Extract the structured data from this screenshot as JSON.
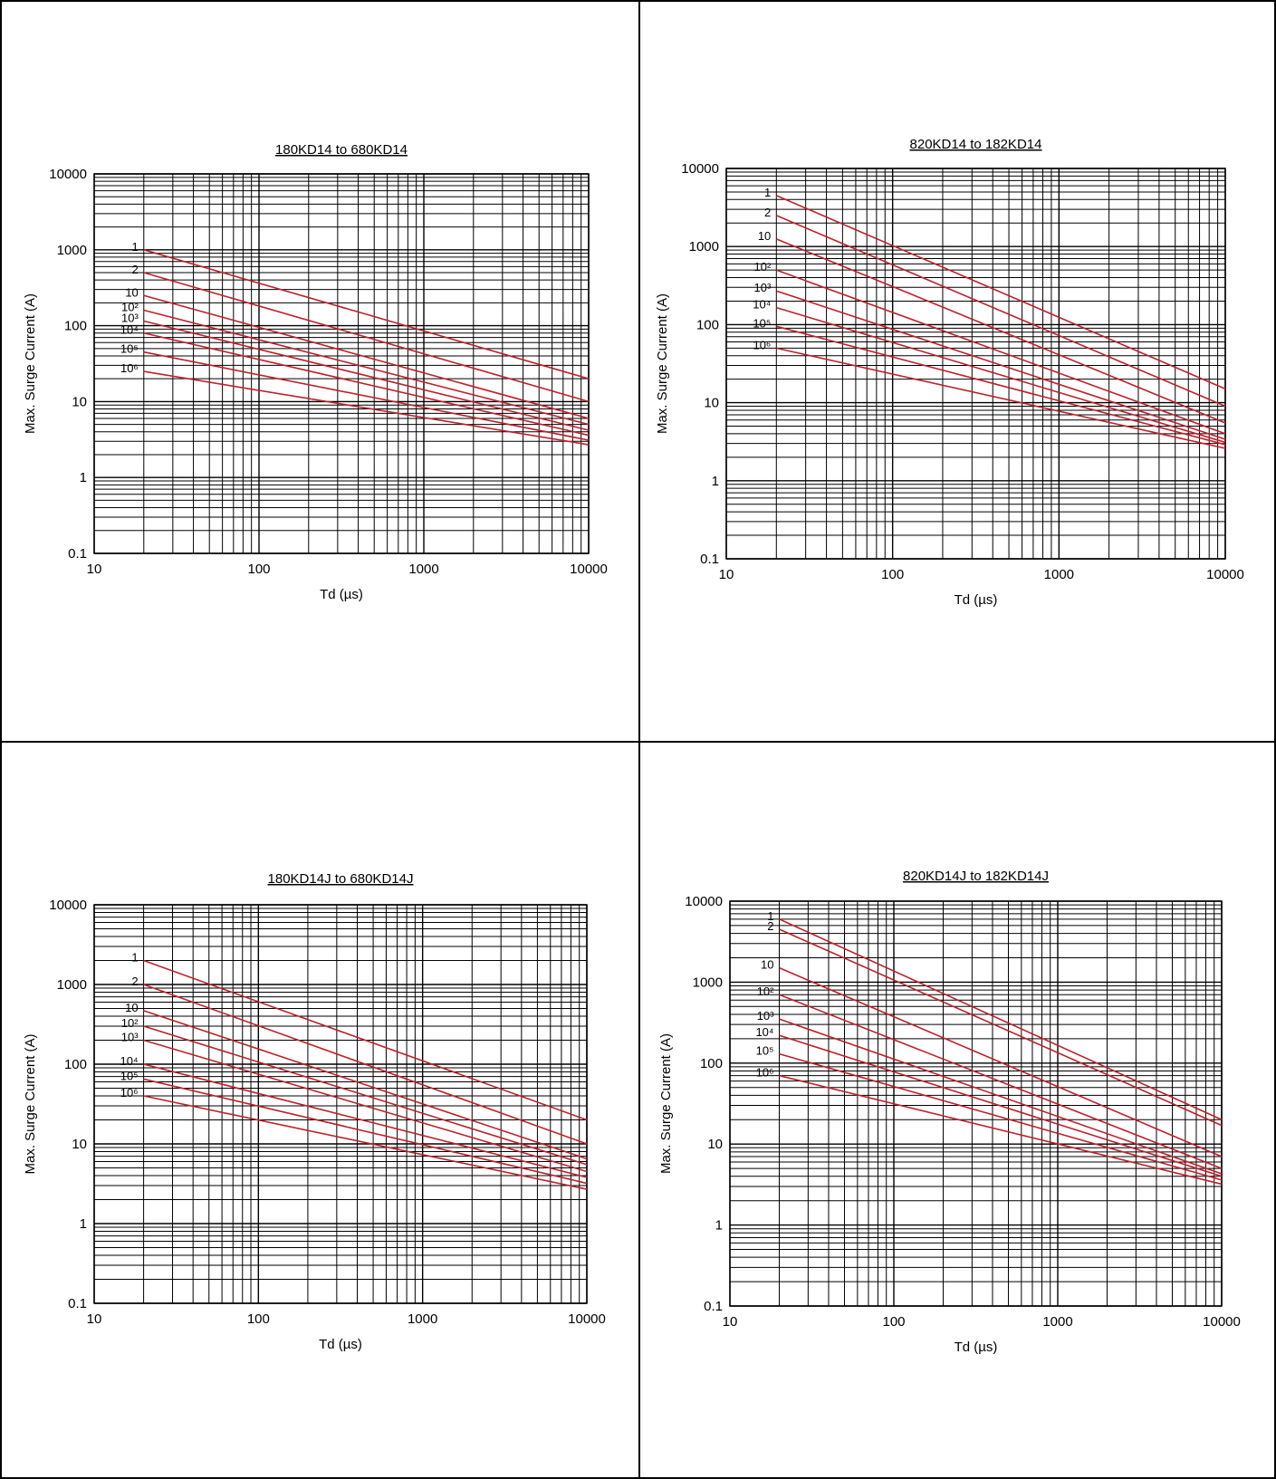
{
  "colors": {
    "curve": "#c0202a",
    "grid": "#000000",
    "border": "#000000",
    "text": "#000000"
  },
  "chart_data": [
    {
      "type": "line",
      "title": "180KD14 to 680KD14",
      "xlabel": "Td (µs)",
      "ylabel": "Max. Surge Current (A)",
      "xscale": "log",
      "yscale": "log",
      "xlim": [
        10,
        10000
      ],
      "ylim": [
        0.1,
        10000
      ],
      "x_ticks": [
        "10",
        "100",
        "1000",
        "10000"
      ],
      "y_ticks": [
        "0.1",
        "1",
        "10",
        "100",
        "1000",
        "10000"
      ],
      "grid": true,
      "series": [
        {
          "label": "1",
          "points": [
            [
              20,
              1000
            ],
            [
              10000,
              20
            ]
          ]
        },
        {
          "label": "2",
          "points": [
            [
              20,
              500
            ],
            [
              10000,
              10
            ]
          ]
        },
        {
          "label": "10",
          "points": [
            [
              20,
              250
            ],
            [
              10000,
              6
            ]
          ]
        },
        {
          "label": "10²",
          "points": [
            [
              20,
              160
            ],
            [
              10000,
              5
            ]
          ]
        },
        {
          "label": "10³",
          "points": [
            [
              20,
              115
            ],
            [
              10000,
              4.2
            ]
          ]
        },
        {
          "label": "10⁴",
          "points": [
            [
              20,
              80
            ],
            [
              10000,
              3.6
            ]
          ]
        },
        {
          "label": "10⁵",
          "points": [
            [
              20,
              45
            ],
            [
              10000,
              3.1
            ]
          ]
        },
        {
          "label": "10⁶",
          "points": [
            [
              20,
              25
            ],
            [
              10000,
              2.7
            ]
          ]
        }
      ]
    },
    {
      "type": "line",
      "title": "820KD14 to 182KD14",
      "xlabel": "Td (µs)",
      "ylabel": "Max. Surge Current (A)",
      "xscale": "log",
      "yscale": "log",
      "xlim": [
        10,
        10000
      ],
      "ylim": [
        0.1,
        10000
      ],
      "x_ticks": [
        "10",
        "100",
        "1000",
        "10000"
      ],
      "y_ticks": [
        "0.1",
        "1",
        "10",
        "100",
        "1000",
        "10000"
      ],
      "grid": true,
      "series": [
        {
          "label": "1",
          "points": [
            [
              20,
              4500
            ],
            [
              10000,
              15
            ]
          ]
        },
        {
          "label": "2",
          "points": [
            [
              20,
              2500
            ],
            [
              10000,
              9
            ]
          ]
        },
        {
          "label": "10",
          "points": [
            [
              20,
              1250
            ],
            [
              10000,
              5.5
            ]
          ]
        },
        {
          "label": "10²",
          "points": [
            [
              20,
              500
            ],
            [
              10000,
              4
            ]
          ]
        },
        {
          "label": "10³",
          "points": [
            [
              20,
              270
            ],
            [
              10000,
              3.4
            ]
          ]
        },
        {
          "label": "10⁴",
          "points": [
            [
              20,
              165
            ],
            [
              10000,
              3.1
            ]
          ]
        },
        {
          "label": "10⁵",
          "points": [
            [
              20,
              95
            ],
            [
              10000,
              2.9
            ]
          ]
        },
        {
          "label": "10⁶",
          "points": [
            [
              20,
              50
            ],
            [
              10000,
              2.6
            ]
          ]
        }
      ]
    },
    {
      "type": "line",
      "title": "180KD14J to 680KD14J",
      "xlabel": "Td (µs)",
      "ylabel": "Max. Surge Current (A)",
      "xscale": "log",
      "yscale": "log",
      "xlim": [
        10,
        10000
      ],
      "ylim": [
        0.1,
        10000
      ],
      "x_ticks": [
        "10",
        "100",
        "1000",
        "10000"
      ],
      "y_ticks": [
        "0.1",
        "1",
        "10",
        "100",
        "1000",
        "10000"
      ],
      "grid": true,
      "series": [
        {
          "label": "1",
          "points": [
            [
              20,
              2000
            ],
            [
              10000,
              20
            ]
          ]
        },
        {
          "label": "2",
          "points": [
            [
              20,
              1000
            ],
            [
              10000,
              10
            ]
          ]
        },
        {
          "label": "10",
          "points": [
            [
              20,
              470
            ],
            [
              10000,
              6.5
            ]
          ]
        },
        {
          "label": "10²",
          "points": [
            [
              20,
              300
            ],
            [
              10000,
              5.5
            ]
          ]
        },
        {
          "label": "10³",
          "points": [
            [
              20,
              200
            ],
            [
              10000,
              4.5
            ]
          ]
        },
        {
          "label": "10⁴",
          "points": [
            [
              20,
              100
            ],
            [
              10000,
              3.8
            ]
          ]
        },
        {
          "label": "10⁵",
          "points": [
            [
              20,
              65
            ],
            [
              10000,
              3.2
            ]
          ]
        },
        {
          "label": "10⁶",
          "points": [
            [
              20,
              40
            ],
            [
              10000,
              2.7
            ]
          ]
        }
      ]
    },
    {
      "type": "line",
      "title": "820KD14J to 182KD14J",
      "xlabel": "Td (µs)",
      "ylabel": "Max. Surge Current (A)",
      "xscale": "log",
      "yscale": "log",
      "xlim": [
        10,
        10000
      ],
      "ylim": [
        0.1,
        10000
      ],
      "x_ticks": [
        "10",
        "100",
        "1000",
        "10000"
      ],
      "y_ticks": [
        "0.1",
        "1",
        "10",
        "100",
        "1000",
        "10000"
      ],
      "grid": true,
      "series": [
        {
          "label": "1",
          "points": [
            [
              20,
              6000
            ],
            [
              10000,
              20
            ]
          ]
        },
        {
          "label": "2",
          "points": [
            [
              20,
              4500
            ],
            [
              10000,
              17
            ]
          ]
        },
        {
          "label": "10",
          "points": [
            [
              20,
              1500
            ],
            [
              10000,
              7
            ]
          ]
        },
        {
          "label": "10²",
          "points": [
            [
              20,
              700
            ],
            [
              10000,
              5
            ]
          ]
        },
        {
          "label": "10³",
          "points": [
            [
              20,
              350
            ],
            [
              10000,
              4.3
            ]
          ]
        },
        {
          "label": "10⁴",
          "points": [
            [
              20,
              220
            ],
            [
              10000,
              4
            ]
          ]
        },
        {
          "label": "10⁵",
          "points": [
            [
              20,
              130
            ],
            [
              10000,
              3.6
            ]
          ]
        },
        {
          "label": "10⁶",
          "points": [
            [
              20,
              70
            ],
            [
              10000,
              3.2
            ]
          ]
        }
      ]
    }
  ]
}
